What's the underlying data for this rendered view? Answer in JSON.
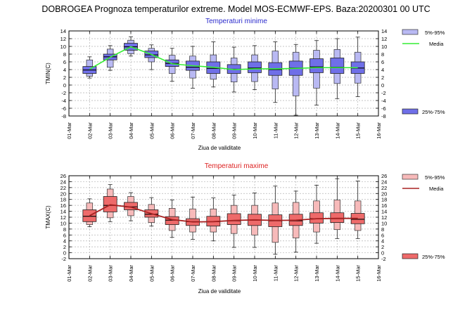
{
  "main_title": "DOBROGEA  Prognoza temperaturilor extreme.  Model MOS-ECMWF-EPS. Baza:20200301 00 UTC",
  "colors": {
    "min_box_light": "#b9b9f3",
    "min_box_dark": "#6f6fe8",
    "min_line": "#33ee33",
    "min_title": "#2a2acc",
    "max_box_light": "#f7baba",
    "max_box_dark": "#ee6a6a",
    "max_line": "#a82222",
    "max_title": "#dd2222",
    "grid": "#b4b4b4"
  },
  "chart_data": [
    {
      "type": "boxplot",
      "title": "Temperaturi minime",
      "xlabel": "Ziua de validitate",
      "ylabel": "TMIN(C)",
      "ylim": [
        -8,
        14
      ],
      "yticks": [
        -8,
        -6,
        -4,
        -2,
        0,
        2,
        4,
        6,
        8,
        10,
        12,
        14
      ],
      "categories": [
        "01-Mar",
        "02-Mar",
        "03-Mar",
        "04-Mar",
        "05-Mar",
        "06-Mar",
        "07-Mar",
        "08-Mar",
        "09-Mar",
        "10-Mar",
        "11-Mar",
        "12-Mar",
        "13-Mar",
        "14-Mar",
        "15-Mar",
        "16-Mar"
      ],
      "legend": {
        "range_5_95": "5%-95%",
        "mean": "Media",
        "range_25_75": "25%-75%"
      },
      "series": [
        {
          "date": "02-Mar",
          "p5": 1.8,
          "p10": 2.3,
          "p25": 3.0,
          "median": 3.9,
          "p75": 4.8,
          "p90": 6.5,
          "p95": 7.3,
          "mean": 4.1
        },
        {
          "date": "03-Mar",
          "p5": 3.8,
          "p10": 4.6,
          "p25": 6.5,
          "median": 7.3,
          "p75": 8.0,
          "p90": 9.3,
          "p95": 10.2,
          "mean": 7.2
        },
        {
          "date": "04-Mar",
          "p5": 7.5,
          "p10": 8.1,
          "p25": 9.0,
          "median": 9.9,
          "p75": 10.8,
          "p90": 11.6,
          "p95": 12.5,
          "mean": 9.9
        },
        {
          "date": "05-Mar",
          "p5": 4.0,
          "p10": 6.0,
          "p25": 7.1,
          "median": 7.8,
          "p75": 8.8,
          "p90": 9.5,
          "p95": 10.4,
          "mean": 7.9
        },
        {
          "date": "06-Mar",
          "p5": 1.0,
          "p10": 3.0,
          "p25": 4.8,
          "median": 5.6,
          "p75": 6.5,
          "p90": 7.7,
          "p95": 9.5,
          "mean": 5.5
        },
        {
          "date": "07-Mar",
          "p5": -0.8,
          "p10": 1.8,
          "p25": 3.8,
          "median": 4.6,
          "p75": 6.2,
          "p90": 7.5,
          "p95": 10.0,
          "mean": 5.0
        },
        {
          "date": "08-Mar",
          "p5": -0.5,
          "p10": 1.5,
          "p25": 3.0,
          "median": 4.3,
          "p75": 6.0,
          "p90": 7.8,
          "p95": 11.2,
          "mean": 4.6
        },
        {
          "date": "09-Mar",
          "p5": -1.8,
          "p10": 0.8,
          "p25": 3.0,
          "median": 4.1,
          "p75": 5.3,
          "p90": 7.0,
          "p95": 9.8,
          "mean": 4.0
        },
        {
          "date": "10-Mar",
          "p5": -1.2,
          "p10": 0.9,
          "p25": 3.2,
          "median": 4.4,
          "p75": 6.0,
          "p90": 7.8,
          "p95": 10.2,
          "mean": 4.2
        },
        {
          "date": "11-Mar",
          "p5": -4.5,
          "p10": -1.0,
          "p25": 2.5,
          "median": 4.0,
          "p75": 5.8,
          "p90": 8.8,
          "p95": 11.2,
          "mean": 4.2
        },
        {
          "date": "12-Mar",
          "p5": -7.8,
          "p10": -2.8,
          "p25": 2.5,
          "median": 4.4,
          "p75": 6.2,
          "p90": 8.5,
          "p95": 10.5,
          "mean": 4.3
        },
        {
          "date": "13-Mar",
          "p5": -5.2,
          "p10": -0.8,
          "p25": 3.2,
          "median": 4.7,
          "p75": 6.8,
          "p90": 9.0,
          "p95": 11.5,
          "mean": 4.5
        },
        {
          "date": "14-Mar",
          "p5": -3.5,
          "p10": 0.4,
          "p25": 3.0,
          "median": 4.6,
          "p75": 7.0,
          "p90": 9.2,
          "p95": 12.0,
          "mean": 4.5
        },
        {
          "date": "15-Mar",
          "p5": -3.0,
          "p10": 0.5,
          "p25": 3.0,
          "median": 4.4,
          "p75": 6.0,
          "p90": 8.5,
          "p95": 12.4,
          "mean": 4.5
        }
      ]
    },
    {
      "type": "boxplot",
      "title": "Temperaturi maxime",
      "xlabel": "Ziua de validitate",
      "ylabel": "TMAX(C)",
      "ylim": [
        -2,
        26
      ],
      "yticks": [
        -2,
        0,
        2,
        4,
        6,
        8,
        10,
        12,
        14,
        16,
        18,
        20,
        22,
        24,
        26
      ],
      "categories": [
        "01-Mar",
        "02-Mar",
        "03-Mar",
        "04-Mar",
        "05-Mar",
        "06-Mar",
        "07-Mar",
        "08-Mar",
        "09-Mar",
        "10-Mar",
        "11-Mar",
        "12-Mar",
        "13-Mar",
        "14-Mar",
        "15-Mar",
        "16-Mar"
      ],
      "legend": {
        "range_5_95": "5%-95%",
        "mean": "Media",
        "range_25_75": "25%-75%"
      },
      "series": [
        {
          "date": "02-Mar",
          "p5": 8.8,
          "p10": 9.5,
          "p25": 10.5,
          "median": 12.3,
          "p75": 14.5,
          "p90": 16.8,
          "p95": 18.2,
          "mean": 12.5
        },
        {
          "date": "03-Mar",
          "p5": 10.5,
          "p10": 11.8,
          "p25": 13.8,
          "median": 16.0,
          "p75": 19.0,
          "p90": 21.5,
          "p95": 23.0,
          "mean": 16.2
        },
        {
          "date": "04-Mar",
          "p5": 10.8,
          "p10": 12.5,
          "p25": 14.5,
          "median": 15.5,
          "p75": 17.0,
          "p90": 19.0,
          "p95": 20.3,
          "mean": 15.4
        },
        {
          "date": "05-Mar",
          "p5": 9.0,
          "p10": 10.2,
          "p25": 12.0,
          "median": 13.0,
          "p75": 14.5,
          "p90": 16.3,
          "p95": 18.6,
          "mean": 13.2
        },
        {
          "date": "06-Mar",
          "p5": 5.2,
          "p10": 7.5,
          "p25": 9.5,
          "median": 11.0,
          "p75": 12.2,
          "p90": 15.0,
          "p95": 17.8,
          "mean": 11.2
        },
        {
          "date": "07-Mar",
          "p5": 4.5,
          "p10": 7.0,
          "p25": 9.2,
          "median": 10.5,
          "p75": 11.5,
          "p90": 14.8,
          "p95": 18.8,
          "mean": 10.4
        },
        {
          "date": "08-Mar",
          "p5": 4.0,
          "p10": 7.0,
          "p25": 9.0,
          "median": 10.5,
          "p75": 12.3,
          "p90": 14.8,
          "p95": 18.5,
          "mean": 10.5
        },
        {
          "date": "09-Mar",
          "p5": 1.8,
          "p10": 6.5,
          "p25": 9.5,
          "median": 10.8,
          "p75": 13.2,
          "p90": 16.0,
          "p95": 19.5,
          "mean": 10.9
        },
        {
          "date": "10-Mar",
          "p5": 1.8,
          "p10": 6.0,
          "p25": 9.2,
          "median": 11.0,
          "p75": 13.0,
          "p90": 16.0,
          "p95": 20.2,
          "mean": 11.1
        },
        {
          "date": "11-Mar",
          "p5": -0.5,
          "p10": 3.5,
          "p25": 8.8,
          "median": 10.8,
          "p75": 12.8,
          "p90": 16.8,
          "p95": 22.5,
          "mean": 10.9
        },
        {
          "date": "12-Mar",
          "p5": 0.2,
          "p10": 5.0,
          "p25": 9.2,
          "median": 10.8,
          "p75": 13.0,
          "p90": 17.0,
          "p95": 20.8,
          "mean": 11.0
        },
        {
          "date": "13-Mar",
          "p5": 3.2,
          "p10": 7.0,
          "p25": 10.0,
          "median": 11.5,
          "p75": 13.5,
          "p90": 17.5,
          "p95": 22.8,
          "mean": 11.5
        },
        {
          "date": "14-Mar",
          "p5": 4.8,
          "p10": 7.8,
          "p25": 10.2,
          "median": 11.5,
          "p75": 13.5,
          "p90": 17.8,
          "p95": 25.0,
          "mean": 11.6
        },
        {
          "date": "15-Mar",
          "p5": 4.8,
          "p10": 7.5,
          "p25": 9.8,
          "median": 11.3,
          "p75": 13.3,
          "p90": 17.5,
          "p95": 24.2,
          "mean": 11.6
        }
      ]
    }
  ]
}
